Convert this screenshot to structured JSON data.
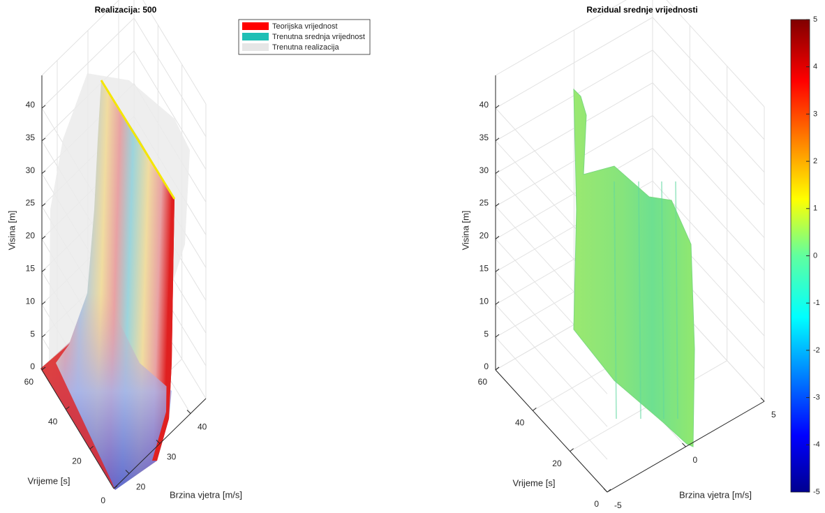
{
  "chart_data": [
    {
      "type": "surface3d",
      "title": "Realizacija: 500",
      "xlabel": "Vrijeme [s]",
      "ylabel": "Brzina vjetra [m/s]",
      "zlabel": "Visina [m]",
      "xlim": [
        0,
        60
      ],
      "xticks": [
        0,
        20,
        40,
        60
      ],
      "ylim": [
        15,
        45
      ],
      "yticks": [
        20,
        30,
        40
      ],
      "zlim": [
        0,
        45
      ],
      "zticks": [
        0,
        5,
        10,
        15,
        20,
        25,
        30,
        35,
        40
      ],
      "grid": true,
      "legend": [
        {
          "name": "Teorijska vrijednost",
          "color": "#ff0000"
        },
        {
          "name": "Trenutna srednja vrijednost",
          "color": "#1fbfb5"
        },
        {
          "name": "Trenutna realizacija",
          "color": "#e6e6e6"
        }
      ]
    },
    {
      "type": "surface3d",
      "title": "Rezidual srednje vrijednosti",
      "xlabel": "Vrijeme [s]",
      "ylabel": "Brzina vjetra [m/s]",
      "zlabel": "Visina [m]",
      "xlim": [
        0,
        60
      ],
      "xticks": [
        0,
        20,
        40,
        60
      ],
      "ylim": [
        -5,
        5
      ],
      "yticks": [
        -5,
        0,
        5
      ],
      "zlim": [
        0,
        45
      ],
      "zticks": [
        0,
        5,
        10,
        15,
        20,
        25,
        30,
        35,
        40
      ],
      "grid": true,
      "clim": [
        -5,
        5
      ],
      "cticks": [
        -5,
        -4,
        -3,
        -2,
        -1,
        0,
        1,
        2,
        3,
        4,
        5
      ]
    }
  ]
}
